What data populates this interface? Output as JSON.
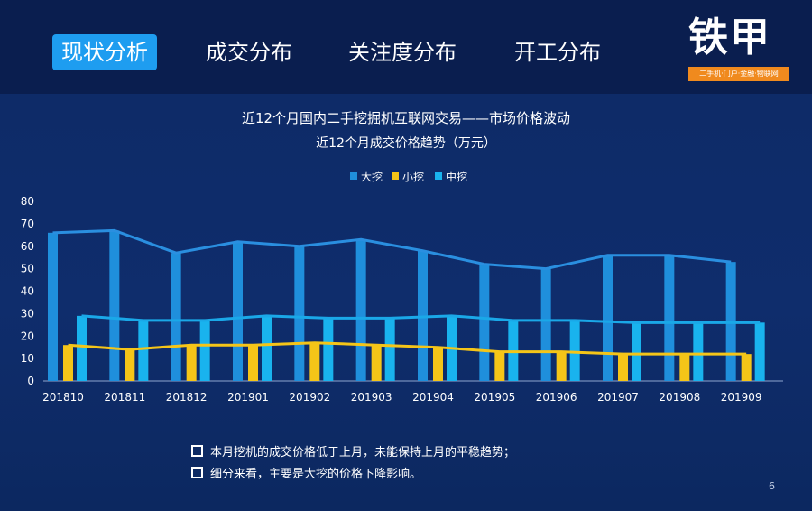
{
  "tabs": [
    {
      "label": "现状分析",
      "active": true
    },
    {
      "label": "成交分布",
      "active": false
    },
    {
      "label": "关注度分布",
      "active": false
    },
    {
      "label": "开工分布",
      "active": false
    }
  ],
  "logo": {
    "main": "铁甲",
    "tagline": "二手机·门户·金融·物联网"
  },
  "page_number": "6",
  "notes": [
    "本月挖机的成交价格低于上月，未能保持上月的平稳趋势；",
    "细分来看，主要是大挖的价格下降影响。"
  ],
  "colors": {
    "large": "#1f8fdc",
    "small": "#f5c518",
    "medium": "#19b3ee",
    "accent": "#1e9df0",
    "logo_bar": "#f08a1e"
  },
  "chart_data": {
    "type": "bar",
    "title": "近12个月国内二手挖掘机互联网交易——市场价格波动",
    "subtitle": "近12个月成交价格趋势（万元）",
    "categories": [
      "201810",
      "201811",
      "201812",
      "201901",
      "201902",
      "201903",
      "201904",
      "201905",
      "201906",
      "201907",
      "201908",
      "201909"
    ],
    "series": [
      {
        "name": "大挖",
        "values": [
          66,
          67,
          57,
          62,
          60,
          63,
          58,
          52,
          50,
          56,
          56,
          53
        ],
        "color": "#1f8fdc"
      },
      {
        "name": "小挖",
        "values": [
          16,
          14,
          16,
          16,
          17,
          16,
          15,
          13,
          13,
          12,
          12,
          12
        ],
        "color": "#f5c518"
      },
      {
        "name": "中挖",
        "values": [
          29,
          27,
          27,
          29,
          28,
          28,
          29,
          27,
          27,
          26,
          26,
          26
        ],
        "color": "#19b3ee"
      }
    ],
    "ylim": [
      0,
      80
    ],
    "yticks": [
      0,
      10,
      20,
      30,
      40,
      50,
      60,
      70,
      80
    ],
    "legend_position": "top",
    "trend_lines": true,
    "grid": false
  }
}
